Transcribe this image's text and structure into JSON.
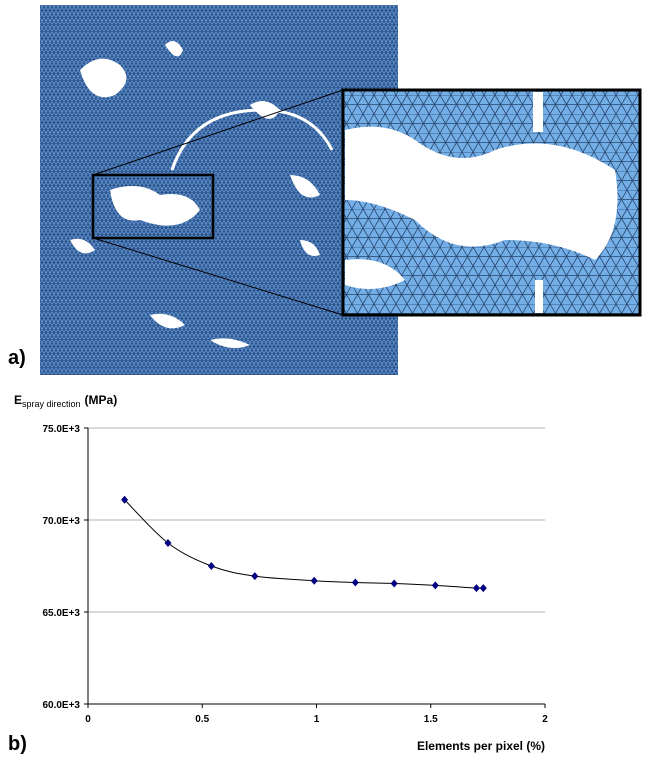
{
  "panel_a_label": "a)",
  "chart_data": {
    "type": "scatter",
    "panel_label": "b)",
    "y_label": "E",
    "y_label_subscript": "spray direction",
    "y_label_unit": "(MPa)",
    "x_label": "Elements per pixel (%)",
    "x": [
      0.16,
      0.35,
      0.54,
      0.73,
      0.99,
      1.17,
      1.34,
      1.52,
      1.7,
      1.73
    ],
    "values": [
      71100,
      68750,
      67500,
      66950,
      66700,
      66600,
      66550,
      66450,
      66300,
      66300
    ],
    "color": "#000080",
    "xlim": [
      0,
      2
    ],
    "xticks": [
      0,
      0.5,
      1,
      1.5,
      2
    ],
    "ylim": [
      60000,
      75000
    ],
    "yticks": [
      {
        "value": 60000,
        "label": "60.0E+3"
      },
      {
        "value": 65000,
        "label": "65.0E+3"
      },
      {
        "value": 70000,
        "label": "70.0E+3"
      },
      {
        "value": 75000,
        "label": "75.0E+3"
      }
    ],
    "grid": true
  }
}
